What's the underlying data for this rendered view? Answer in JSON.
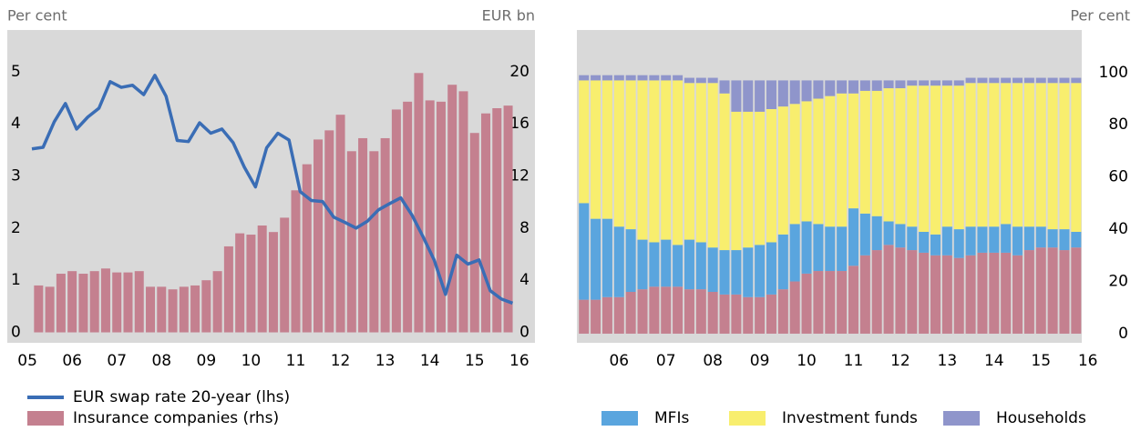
{
  "chart_data": [
    {
      "type": "combo",
      "y_label": "Per cent",
      "y2_label": "EUR bn",
      "xlim": [
        2004.55,
        2016.35
      ],
      "xticks": [
        {
          "value": 2005,
          "label": "05"
        },
        {
          "value": 2006,
          "label": "06"
        },
        {
          "value": 2007,
          "label": "07"
        },
        {
          "value": 2008,
          "label": "08"
        },
        {
          "value": 2009,
          "label": "09"
        },
        {
          "value": 2010,
          "label": "10"
        },
        {
          "value": 2011,
          "label": "11"
        },
        {
          "value": 2012,
          "label": "12"
        },
        {
          "value": 2013,
          "label": "13"
        },
        {
          "value": 2014,
          "label": "14"
        },
        {
          "value": 2015,
          "label": "15"
        },
        {
          "value": 2016,
          "label": "16"
        }
      ],
      "ylim": [
        -0.2,
        5.8
      ],
      "yticks": [
        0,
        1,
        2,
        3,
        4,
        5
      ],
      "y2lim": [
        -0.8,
        23.2
      ],
      "y2ticks": [
        0,
        4,
        8,
        12,
        16,
        20
      ],
      "series": [
        {
          "name": "Insurance companies (rhs)",
          "type": "bar",
          "axis": "y2",
          "color": "#c4808f",
          "x": [
            2005.25,
            2005.5,
            2005.75,
            2006,
            2006.25,
            2006.5,
            2006.75,
            2007,
            2007.25,
            2007.5,
            2007.75,
            2008,
            2008.25,
            2008.5,
            2008.75,
            2009,
            2009.25,
            2009.5,
            2009.75,
            2010,
            2010.25,
            2010.5,
            2010.75,
            2011,
            2011.25,
            2011.5,
            2011.75,
            2012,
            2012.25,
            2012.5,
            2012.75,
            2013,
            2013.25,
            2013.5,
            2013.75,
            2014,
            2014.25,
            2014.5,
            2014.75,
            2015,
            2015.25,
            2015.5,
            2015.75
          ],
          "values": [
            3.6,
            3.5,
            4.5,
            4.7,
            4.5,
            4.7,
            4.9,
            4.6,
            4.6,
            4.7,
            3.5,
            3.5,
            3.3,
            3.5,
            3.6,
            4.0,
            4.7,
            6.6,
            7.6,
            7.5,
            8.2,
            7.7,
            8.8,
            10.9,
            12.9,
            14.8,
            15.5,
            16.7,
            13.9,
            14.9,
            13.9,
            14.9,
            17.1,
            17.7,
            19.9,
            17.8,
            17.7,
            19.0,
            18.5,
            15.3,
            16.8,
            17.2,
            17.4
          ]
        },
        {
          "name": "EUR swap rate 20-year (lhs)",
          "type": "line",
          "axis": "y",
          "color": "#3a6db5",
          "x": [
            2005.1,
            2005.35,
            2005.6,
            2005.85,
            2006.1,
            2006.35,
            2006.6,
            2006.85,
            2007.1,
            2007.35,
            2007.6,
            2007.85,
            2008.1,
            2008.35,
            2008.6,
            2008.85,
            2009.1,
            2009.35,
            2009.6,
            2009.85,
            2010.1,
            2010.35,
            2010.6,
            2010.85,
            2011.1,
            2011.35,
            2011.6,
            2011.85,
            2012.1,
            2012.35,
            2012.6,
            2012.85,
            2013.1,
            2013.35,
            2013.6,
            2013.85,
            2014.1,
            2014.35,
            2014.6,
            2014.85,
            2015.1,
            2015.35,
            2015.6,
            2015.85
          ],
          "values": [
            3.52,
            3.55,
            4.04,
            4.39,
            3.9,
            4.13,
            4.3,
            4.81,
            4.7,
            4.74,
            4.56,
            4.93,
            4.53,
            3.68,
            3.66,
            4.02,
            3.82,
            3.9,
            3.64,
            3.17,
            2.79,
            3.54,
            3.82,
            3.69,
            2.7,
            2.53,
            2.51,
            2.21,
            2.11,
            2.0,
            2.13,
            2.35,
            2.47,
            2.58,
            2.25,
            1.83,
            1.38,
            0.73,
            1.48,
            1.31,
            1.39,
            0.8,
            0.64,
            0.56
          ]
        }
      ]
    },
    {
      "type": "stacked_bar",
      "y_label": "Per cent",
      "xlim": [
        2005.1,
        2015.87
      ],
      "xticks": [
        {
          "value": 2006,
          "label": "06"
        },
        {
          "value": 2007,
          "label": "07"
        },
        {
          "value": 2008,
          "label": "08"
        },
        {
          "value": 2009,
          "label": "09"
        },
        {
          "value": 2010,
          "label": "10"
        },
        {
          "value": 2011,
          "label": "11"
        },
        {
          "value": 2012,
          "label": "12"
        },
        {
          "value": 2013,
          "label": "13"
        },
        {
          "value": 2014,
          "label": "14"
        },
        {
          "value": 2015,
          "label": "15"
        },
        {
          "value": 2016,
          "label": "16"
        }
      ],
      "ylim": [
        -3.5,
        116.3
      ],
      "yticks": [
        0,
        20,
        40,
        60,
        80,
        100
      ],
      "x": [
        2005.25,
        2005.5,
        2005.75,
        2006,
        2006.25,
        2006.5,
        2006.75,
        2007,
        2007.25,
        2007.5,
        2007.75,
        2008,
        2008.25,
        2008.5,
        2008.75,
        2009,
        2009.25,
        2009.5,
        2009.75,
        2010,
        2010.25,
        2010.5,
        2010.75,
        2011,
        2011.25,
        2011.5,
        2011.75,
        2012,
        2012.25,
        2012.5,
        2012.75,
        2013,
        2013.25,
        2013.5,
        2013.75,
        2014,
        2014.25,
        2014.5,
        2014.75,
        2015,
        2015.25,
        2015.5,
        2015.75
      ],
      "series": [
        {
          "color": "#c4808f",
          "values": [
            13,
            13,
            14,
            14,
            16,
            17,
            18,
            18,
            18,
            17,
            17,
            16,
            15,
            15,
            14,
            14,
            15,
            17,
            20,
            23,
            24,
            24,
            24,
            26,
            30,
            32,
            34,
            33,
            32,
            31,
            30,
            30,
            29,
            30,
            31,
            31,
            31,
            30,
            32,
            33,
            33,
            32,
            33
          ]
        },
        {
          "name": "MFIs",
          "color": "#5aa5de",
          "values": [
            37,
            31,
            30,
            27,
            24,
            19,
            17,
            18,
            16,
            19,
            18,
            17,
            17,
            17,
            19,
            20,
            20,
            21,
            22,
            20,
            18,
            17,
            17,
            22,
            16,
            13,
            9,
            9,
            9,
            8,
            8,
            11,
            11,
            11,
            10,
            10,
            11,
            11,
            9,
            8,
            7,
            8,
            6
          ]
        },
        {
          "name": "Investment funds",
          "color": "#f8ee6e",
          "values": [
            47,
            53,
            53,
            56,
            57,
            61,
            62,
            61,
            63,
            60,
            61,
            63,
            60,
            53,
            52,
            51,
            51,
            49,
            46,
            46,
            48,
            50,
            51,
            44,
            47,
            48,
            51,
            52,
            54,
            56,
            57,
            54,
            55,
            55,
            55,
            55,
            54,
            55,
            55,
            55,
            56,
            56,
            57
          ]
        },
        {
          "name": "Households",
          "color": "#8f95cb",
          "values": [
            2,
            2,
            2,
            2,
            2,
            2,
            2,
            2,
            2,
            2,
            2,
            2,
            5,
            12,
            12,
            12,
            11,
            10,
            9,
            8,
            7,
            6,
            5,
            5,
            4,
            4,
            3,
            3,
            2,
            2,
            2,
            2,
            2,
            2,
            2,
            2,
            2,
            2,
            2,
            2,
            2,
            2,
            2
          ]
        }
      ]
    }
  ]
}
